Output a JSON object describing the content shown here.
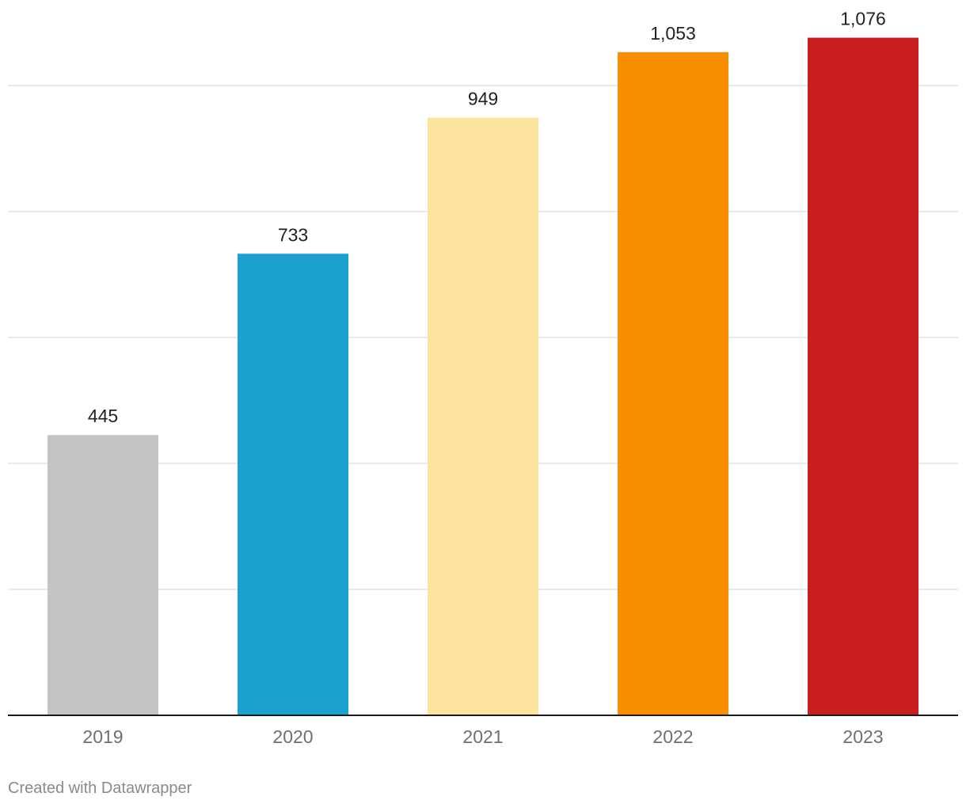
{
  "chart_data": {
    "type": "bar",
    "title": "",
    "xlabel": "",
    "ylabel": "",
    "categories": [
      "2019",
      "2020",
      "2021",
      "2022",
      "2023"
    ],
    "values": [
      445,
      733,
      949,
      1053,
      1076
    ],
    "value_labels": [
      "445",
      "733",
      "949",
      "1,053",
      "1,076"
    ],
    "bar_colors": [
      "#c4c4c4",
      "#1aa1cf",
      "#fde49e",
      "#f98e00",
      "#c91e1e"
    ],
    "ylim": [
      0,
      1000
    ],
    "ygrid_step": 200,
    "grid": true,
    "y_tick_labels_shown": false,
    "legend": "none"
  },
  "footer": {
    "credit": "Created with Datawrapper"
  }
}
